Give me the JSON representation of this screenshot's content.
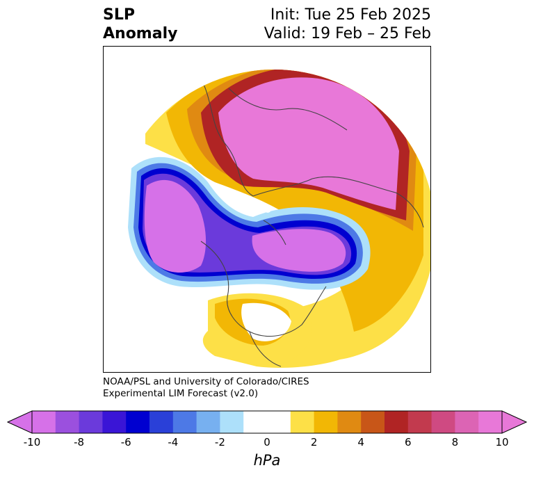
{
  "header": {
    "title_line1": "SLP",
    "title_line2": "Anomaly",
    "init": "Init: Tue 25 Feb 2025",
    "valid": "Valid: 19 Feb – 25 Feb"
  },
  "credit": {
    "line1": "NOAA/PSL and University of Colorado/CIRES",
    "line2": "Experimental LIM Forecast (v2.0)"
  },
  "colorbar": {
    "unit": "hPa",
    "tick_labels": [
      "-10",
      "-8",
      "-6",
      "-4",
      "-2",
      "0",
      "2",
      "4",
      "6",
      "8",
      "10"
    ],
    "bins": [
      {
        "from": -10,
        "to": -9,
        "color": "#d671e8"
      },
      {
        "from": -9,
        "to": -8,
        "color": "#9b50de"
      },
      {
        "from": -8,
        "to": -7,
        "color": "#6b3adb"
      },
      {
        "from": -7,
        "to": -6,
        "color": "#3a15d6"
      },
      {
        "from": -6,
        "to": -5,
        "color": "#0000d0"
      },
      {
        "from": -5,
        "to": -4,
        "color": "#2a40d8"
      },
      {
        "from": -4,
        "to": -3,
        "color": "#4d79e6"
      },
      {
        "from": -3,
        "to": -2,
        "color": "#77b0f0"
      },
      {
        "from": -2,
        "to": -1,
        "color": "#ade0fa"
      },
      {
        "from": -1,
        "to": 0,
        "color": "#ffffff"
      },
      {
        "from": 0,
        "to": 1,
        "color": "#ffffff"
      },
      {
        "from": 1,
        "to": 2,
        "color": "#fde047"
      },
      {
        "from": 2,
        "to": 3,
        "color": "#f2b705"
      },
      {
        "from": 3,
        "to": 4,
        "color": "#e08a12"
      },
      {
        "from": 4,
        "to": 5,
        "color": "#c85618"
      },
      {
        "from": 5,
        "to": 6,
        "color": "#b02424"
      },
      {
        "from": 6,
        "to": 7,
        "color": "#c23a4e"
      },
      {
        "from": 7,
        "to": 8,
        "color": "#cf4a82"
      },
      {
        "from": 8,
        "to": 9,
        "color": "#dc64b4"
      },
      {
        "from": 9,
        "to": 10,
        "color": "#e878d8"
      }
    ],
    "underflow_color": "#d671e8",
    "overflow_color": "#e878d8"
  },
  "map_colors": {
    "land_lines": "#444444",
    "neg_core": "#d671e8",
    "pos_core": "#e878d8"
  }
}
